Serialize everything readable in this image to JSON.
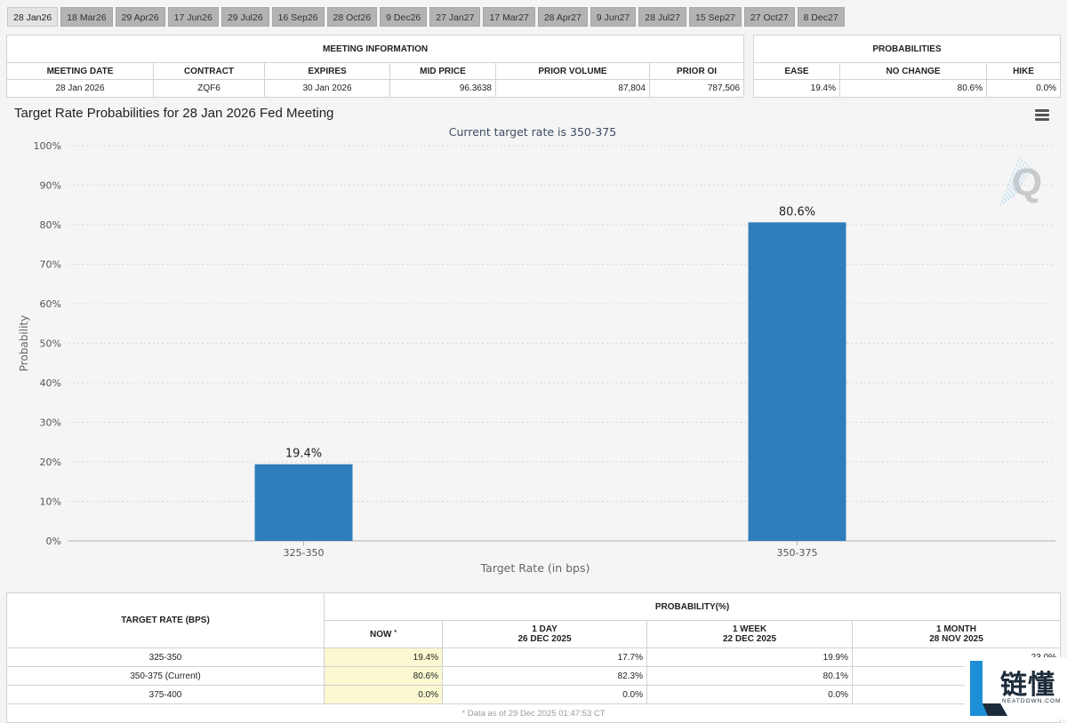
{
  "tabs": [
    {
      "label": "28 Jan26",
      "active": true
    },
    {
      "label": "18 Mar26"
    },
    {
      "label": "29 Apr26"
    },
    {
      "label": "17 Jun26"
    },
    {
      "label": "29 Jul26"
    },
    {
      "label": "16 Sep26"
    },
    {
      "label": "28 Oct26"
    },
    {
      "label": "9 Dec26"
    },
    {
      "label": "27 Jan27"
    },
    {
      "label": "17 Mar27"
    },
    {
      "label": "28 Apr27"
    },
    {
      "label": "9 Jun27"
    },
    {
      "label": "28 Jul27"
    },
    {
      "label": "15 Sep27"
    },
    {
      "label": "27 Oct27"
    },
    {
      "label": "8 Dec27"
    }
  ],
  "meeting_info": {
    "caption": "MEETING INFORMATION",
    "headers": [
      "MEETING DATE",
      "CONTRACT",
      "EXPIRES",
      "MID PRICE",
      "PRIOR VOLUME",
      "PRIOR OI"
    ],
    "values": [
      "28 Jan 2026",
      "ZQF6",
      "30 Jan 2026",
      "96.3638",
      "87,804",
      "787,506"
    ]
  },
  "probabilities": {
    "caption": "PROBABILITIES",
    "headers": [
      "EASE",
      "NO CHANGE",
      "HIKE"
    ],
    "values": [
      "19.4%",
      "80.6%",
      "0.0%"
    ]
  },
  "chart": {
    "title": "Target Rate Probabilities for 28 Jan 2026 Fed Meeting",
    "menu_icon": "hamburger-menu-icon",
    "watermark_icon": "q-logo-icon"
  },
  "chart_data": {
    "type": "bar",
    "title": "Target Rate Probabilities for 28 Jan 2026 Fed Meeting",
    "subtitle": "Current target rate is 350-375",
    "categories": [
      "325-350",
      "350-375"
    ],
    "values": [
      19.4,
      80.6
    ],
    "data_labels": [
      "19.4%",
      "80.6%"
    ],
    "xlabel": "Target Rate (in bps)",
    "ylabel": "Probability",
    "ylim": [
      0,
      100
    ],
    "yticks": [
      0,
      10,
      20,
      30,
      40,
      50,
      60,
      70,
      80,
      90,
      100
    ],
    "ytick_labels": [
      "0%",
      "10%",
      "20%",
      "30%",
      "40%",
      "50%",
      "60%",
      "70%",
      "80%",
      "90%",
      "100%"
    ],
    "grid": true,
    "bar_color": "#2e7ebb"
  },
  "history": {
    "target_rate_header": "TARGET RATE (BPS)",
    "probability_header": "PROBABILITY(%)",
    "now_label": "NOW",
    "now_mark": "*",
    "columns": [
      {
        "line1": "1 DAY",
        "line2": "26 DEC 2025"
      },
      {
        "line1": "1 WEEK",
        "line2": "22 DEC 2025"
      },
      {
        "line1": "1 MONTH",
        "line2": "28 NOV 2025"
      }
    ],
    "rows": [
      {
        "rate": "325-350",
        "now": "19.4%",
        "d1": "17.7%",
        "w1": "19.9%",
        "m1": "23.0%"
      },
      {
        "rate": "350-375 (Current)",
        "now": "80.6%",
        "d1": "82.3%",
        "w1": "80.1%",
        "m1": ""
      },
      {
        "rate": "375-400",
        "now": "0.0%",
        "d1": "0.0%",
        "w1": "0.0%",
        "m1": ""
      }
    ],
    "footnote": "* Data as of 29 Dec 2025 01:47:53 CT"
  },
  "watermark": {
    "text_cn": "链懂",
    "text_en": "NEATDOWN.COM"
  },
  "colors": {
    "bar": "#2e7ebb",
    "now_column": "#fbf9d1",
    "tab": "#b3b3b3",
    "tab_active": "#e3e3e3"
  }
}
